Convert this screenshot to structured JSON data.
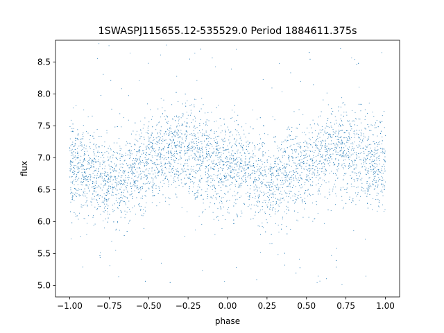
{
  "chart_data": {
    "type": "scatter",
    "title": "1SWASPJ115655.12-535529.0 Period 1884611.375s",
    "xlabel": "phase",
    "ylabel": "flux",
    "xlim": [
      -1.09,
      1.09
    ],
    "ylim": [
      4.82,
      8.84
    ],
    "xticks": [
      -1.0,
      -0.75,
      -0.5,
      -0.25,
      0.0,
      0.25,
      0.5,
      0.75,
      1.0
    ],
    "xtick_labels": [
      "−1.00",
      "−0.75",
      "−0.50",
      "−0.25",
      "0.00",
      "0.25",
      "0.50",
      "0.75",
      "1.00"
    ],
    "yticks": [
      5.0,
      5.5,
      6.0,
      6.5,
      7.0,
      7.5,
      8.0,
      8.5
    ],
    "ytick_labels": [
      "5.0",
      "5.5",
      "6.0",
      "6.5",
      "7.0",
      "7.5",
      "8.0",
      "8.5"
    ],
    "grid": false,
    "marker_color": "#1f77b4",
    "phase_profile": {
      "phase": [
        0.0,
        0.05,
        0.1,
        0.15,
        0.2,
        0.25,
        0.3,
        0.35,
        0.4,
        0.45,
        0.5,
        0.55,
        0.6,
        0.65,
        0.7,
        0.75,
        0.8,
        0.85,
        0.9,
        0.95,
        1.0
      ],
      "median_flux": [
        6.9,
        6.85,
        6.8,
        6.7,
        6.65,
        6.6,
        6.65,
        6.7,
        6.8,
        6.85,
        6.9,
        6.95,
        7.0,
        7.1,
        7.15,
        7.1,
        7.05,
        6.95,
        6.9,
        6.85,
        6.9
      ],
      "scatter_sigma": 0.35,
      "flux_range": [
        5.0,
        8.8
      ]
    }
  }
}
